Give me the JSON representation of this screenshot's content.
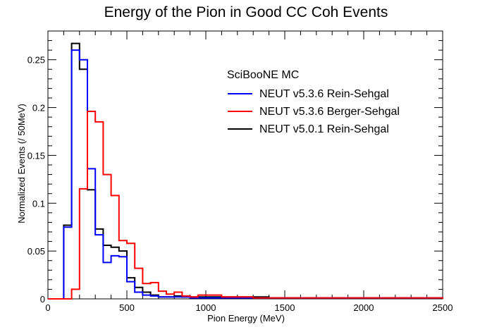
{
  "chart_data": {
    "type": "line",
    "style": "step-histogram",
    "title": "Energy of the Pion in Good CC Coh Events",
    "xlabel": "Pion Energy (MeV)",
    "ylabel": "Normalized Events (/ 50MeV)",
    "xlim": [
      0,
      2500
    ],
    "ylim": [
      0,
      0.28
    ],
    "bin_width": 50,
    "x_ticks": [
      0,
      500,
      1000,
      1500,
      2000,
      2500
    ],
    "x_tick_labels": [
      "0",
      "500",
      "1000",
      "1500",
      "2000",
      "2500"
    ],
    "y_ticks": [
      0,
      0.05,
      0.1,
      0.15,
      0.2,
      0.25
    ],
    "y_tick_labels": [
      "0",
      "0.05",
      "0.1",
      "0.15",
      "0.2",
      "0.25"
    ],
    "grid": false,
    "legend": {
      "header": "SciBooNE MC",
      "placement": "top-right"
    },
    "series": [
      {
        "name": "NEUT v5.3.6 Rein-Sehgal",
        "color": "#0000ff",
        "values": [
          0,
          0,
          0.075,
          0.26,
          0.25,
          0.136,
          0.067,
          0.038,
          0.045,
          0.044,
          0.018,
          0.007,
          0.004,
          0.003,
          0.002,
          0.002,
          0.002,
          0.002,
          0.001,
          0.001,
          0.001,
          0.001,
          0.001,
          0.001,
          0.001,
          0.001,
          0.001,
          0.001,
          0.001,
          0.001,
          0.001,
          0.001,
          0.001,
          0.001,
          0.001,
          0.001,
          0.001,
          0.001,
          0.001,
          0.001,
          0.001,
          0.001,
          0.001,
          0.001,
          0.001,
          0.001,
          0.001,
          0.001,
          0.001,
          0.001
        ]
      },
      {
        "name": "NEUT v5.3.6 Berger-Sehgal",
        "color": "#ff0000",
        "values": [
          0,
          0,
          0,
          0.01,
          0.115,
          0.196,
          0.185,
          0.13,
          0.108,
          0.061,
          0.058,
          0.032,
          0.016,
          0.017,
          0.008,
          0.005,
          0.007,
          0.003,
          0.002,
          0.004,
          0.004,
          0.004,
          0.002,
          0.002,
          0.002,
          0.002,
          0.001,
          0.001,
          0.001,
          0.001,
          0.001,
          0.001,
          0.001,
          0.001,
          0.001,
          0.001,
          0.001,
          0.001,
          0.001,
          0.001,
          0.001,
          0.001,
          0.001,
          0.001,
          0.001,
          0.001,
          0.001,
          0.001,
          0.001,
          0.001
        ]
      },
      {
        "name": "NEUT v5.0.1 Rein-Sehgal",
        "color": "#000000",
        "values": [
          0,
          0,
          0.077,
          0.267,
          0.24,
          0.114,
          0.073,
          0.056,
          0.054,
          0.05,
          0.022,
          0.012,
          0.007,
          0.004,
          0.002,
          0.002,
          0.003,
          0.002,
          0.002,
          0.002,
          0.002,
          0.002,
          0.002,
          0.002,
          0.002,
          0.002,
          0.002,
          0.002,
          0.001,
          0.001,
          0.001,
          0.001,
          0.001,
          0.001,
          0.001,
          0.001,
          0.001,
          0.001,
          0.001,
          0.001,
          0.001,
          0.001,
          0.001,
          0.001,
          0.001,
          0.001,
          0.001,
          0.001,
          0.001,
          0.001
        ]
      }
    ]
  }
}
